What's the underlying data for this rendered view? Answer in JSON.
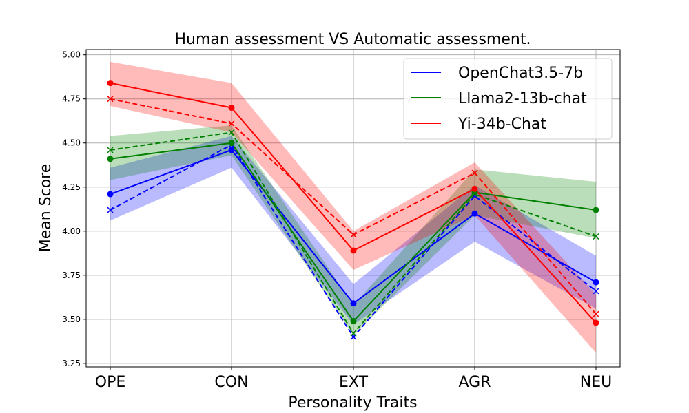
{
  "chart_data": {
    "type": "line",
    "title": "Human assessment VS Automatic assessment.",
    "xlabel": "Personality Traits",
    "ylabel": "Mean Score",
    "categories": [
      "OPE",
      "CON",
      "EXT",
      "AGR",
      "NEU"
    ],
    "ylim": [
      3.23,
      5.03
    ],
    "yticks": [
      "3.25",
      "3.50",
      "3.75",
      "4.00",
      "4.25",
      "4.50",
      "4.75",
      "5.00"
    ],
    "grid": true,
    "legend_position": "top-right",
    "series": [
      {
        "name": "OpenChat3.5-7b",
        "color": "#0000ff",
        "solid_values": [
          4.21,
          4.46,
          3.59,
          4.1,
          3.71
        ],
        "band_lower": [
          4.06,
          4.36,
          3.47,
          3.94,
          3.56
        ],
        "band_upper": [
          4.36,
          4.54,
          3.7,
          4.26,
          3.86
        ],
        "dashed_values": [
          4.12,
          4.49,
          3.4,
          4.2,
          3.66
        ]
      },
      {
        "name": "Llama2-13b-chat",
        "color": "#008000",
        "solid_values": [
          4.41,
          4.5,
          3.49,
          4.22,
          4.12
        ],
        "band_lower": [
          4.29,
          4.43,
          3.41,
          4.09,
          3.96
        ],
        "band_upper": [
          4.54,
          4.6,
          3.58,
          4.35,
          4.28
        ],
        "dashed_values": [
          4.46,
          4.56,
          3.42,
          4.21,
          3.97
        ]
      },
      {
        "name": "Yi-34b-Chat",
        "color": "#ff0000",
        "solid_values": [
          4.84,
          4.7,
          3.89,
          4.24,
          3.48
        ],
        "band_lower": [
          4.71,
          4.56,
          3.78,
          4.09,
          3.31
        ],
        "band_upper": [
          4.96,
          4.84,
          4.0,
          4.39,
          3.64
        ],
        "dashed_values": [
          4.75,
          4.61,
          3.98,
          4.33,
          3.53
        ]
      }
    ]
  }
}
